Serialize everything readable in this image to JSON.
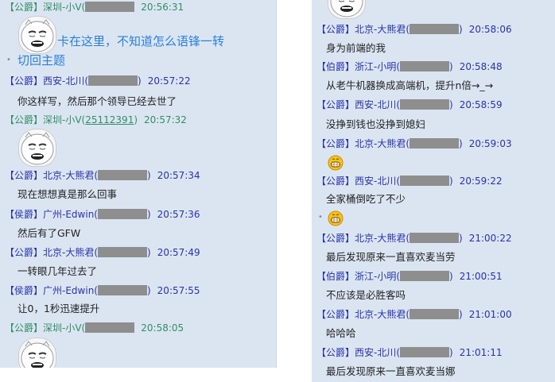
{
  "left_panel": {
    "messages": [
      {
        "rank": "【公爵】",
        "name": "深圳-小V(",
        "id_hidden": true,
        "close": "",
        "time": "20:56:31",
        "color": "green",
        "content_type": "sticker+text",
        "text": "卡在这里，不知道怎么语锋一转",
        "text2": "切回主题"
      },
      {
        "rank": "【公爵】",
        "name": "西安-北川(",
        "id_hidden": true,
        "close": ")",
        "time": "20:57:22",
        "color": "blue",
        "content_type": "text",
        "text": "你这样写，然后那个领导已经去世了"
      },
      {
        "rank": "【公爵】",
        "name": "深圳-小V(",
        "id": "25112391",
        "close": ")",
        "time": "20:57:32",
        "color": "green",
        "content_type": "sticker"
      },
      {
        "rank": "【公爵】",
        "name": "北京-大熊君(",
        "id_hidden": true,
        "close": ")",
        "time": "20:57:34",
        "color": "blue",
        "content_type": "text",
        "text": "现在想想真是那么回事"
      },
      {
        "rank": "【侯爵】",
        "name": "广州-Edwin(",
        "id_hidden": true,
        "close": ")",
        "time": "20:57:36",
        "color": "blue",
        "content_type": "text",
        "text": "然后有了GFW"
      },
      {
        "rank": "【公爵】",
        "name": "北京-大熊君(",
        "id_hidden": true,
        "close": ")",
        "time": "20:57:49",
        "color": "blue",
        "content_type": "text",
        "text": "一转眼几年过去了"
      },
      {
        "rank": "【侯爵】",
        "name": "广州-Edwin(",
        "id_hidden": true,
        "close": ")",
        "time": "20:57:55",
        "color": "blue",
        "content_type": "text",
        "text": "让0，1秒迅速提升"
      },
      {
        "rank": "【公爵】",
        "name": "深圳-小V(",
        "id_hidden": true,
        "close": "",
        "time": "20:58:05",
        "color": "green",
        "content_type": "sticker"
      }
    ]
  },
  "right_panel": {
    "messages": [
      {
        "rank": "【公爵】",
        "name": "北京-大熊君(",
        "id_hidden": true,
        "close": ")",
        "time": "20:58:06",
        "color": "blue",
        "content_type": "text",
        "text": "身为前端的我"
      },
      {
        "rank": "【伯爵】",
        "name": "浙江-小明(",
        "id_hidden": true,
        "close": ")",
        "time": "20:58:48",
        "color": "blue",
        "content_type": "text",
        "text": "从老牛机器换成高端机，提升n倍→_→"
      },
      {
        "rank": "【公爵】",
        "name": "西安-北川(",
        "id_hidden": true,
        "close": ")",
        "time": "20:58:59",
        "color": "blue",
        "content_type": "text",
        "text": "没挣到钱也没挣到媳妇"
      },
      {
        "rank": "【公爵】",
        "name": "北京-大熊君(",
        "id_hidden": true,
        "close": ")",
        "time": "20:59:03",
        "color": "blue",
        "content_type": "emoji"
      },
      {
        "rank": "【公爵】",
        "name": "西安-北川(",
        "id_hidden": true,
        "close": ")",
        "time": "20:59:22",
        "color": "blue",
        "content_type": "text+emoji",
        "text": "全家桶倒吃了不少"
      },
      {
        "rank": "【公爵】",
        "name": "北京-大熊君(",
        "id_hidden": true,
        "close": ")",
        "time": "21:00:22",
        "color": "blue",
        "content_type": "text",
        "text": "最后发现原来一直喜欢麦当劳"
      },
      {
        "rank": "【伯爵】",
        "name": "浙江-小明(",
        "id_hidden": true,
        "close": ")",
        "time": "21:00:51",
        "color": "blue",
        "content_type": "text",
        "text": "不应该是必胜客吗"
      },
      {
        "rank": "【公爵】",
        "name": "北京-大熊君(",
        "id_hidden": true,
        "close": ")",
        "time": "21:01:00",
        "color": "blue",
        "content_type": "text",
        "text": "哈哈哈"
      },
      {
        "rank": "【公爵】",
        "name": "西安-北川(",
        "id_hidden": true,
        "close": ")",
        "time": "21:01:11",
        "color": "blue",
        "content_type": "text",
        "text": "最后发现原来一直喜欢麦当娜"
      }
    ]
  },
  "icons": {
    "sticker": "crying-face-sticker-icon",
    "emoji": "grin-emoji-icon"
  },
  "colors": {
    "header_blue": "#2833a6",
    "header_green": "#2f8f62",
    "panel_bg": "#dbe5f2",
    "blue_message": "#2b7fd6"
  }
}
